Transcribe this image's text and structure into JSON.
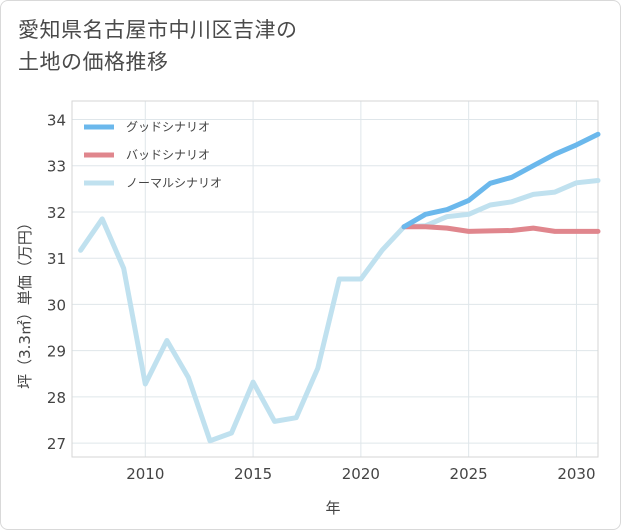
{
  "title_line1": "愛知県名古屋市中川区吉津の",
  "title_line2": "土地の価格推移",
  "chart_data": {
    "type": "line",
    "xlabel": "年",
    "ylabel": "坪（3.3㎡）単価（万円）",
    "xlim": [
      2006.6,
      2031
    ],
    "ylim": [
      26.7,
      34.4
    ],
    "x_ticks": [
      2010,
      2015,
      2020,
      2025,
      2030
    ],
    "y_ticks": [
      27,
      28,
      29,
      30,
      31,
      32,
      33,
      34
    ],
    "grid": true,
    "legend_position": "top-left",
    "series": [
      {
        "name": "グッドシナリオ",
        "color": "#6bb8ec",
        "x": [
          2022,
          2023,
          2024,
          2025,
          2026,
          2027,
          2028,
          2029,
          2030,
          2031
        ],
        "y": [
          31.68,
          31.95,
          32.05,
          32.25,
          32.62,
          32.75,
          33.0,
          33.25,
          33.45,
          33.68
        ]
      },
      {
        "name": "バッドシナリオ",
        "color": "#e0868d",
        "x": [
          2022,
          2023,
          2024,
          2025,
          2026,
          2027,
          2028,
          2029,
          2030,
          2031
        ],
        "y": [
          31.68,
          31.68,
          31.65,
          31.58,
          31.59,
          31.6,
          31.65,
          31.58,
          31.58,
          31.58
        ]
      },
      {
        "name": "ノーマルシナリオ",
        "color": "#c0e1ef",
        "x": [
          2007,
          2008,
          2009,
          2010,
          2011,
          2012,
          2013,
          2014,
          2015,
          2016,
          2017,
          2018,
          2019,
          2020,
          2021,
          2022,
          2023,
          2024,
          2025,
          2026,
          2027,
          2028,
          2029,
          2030,
          2031
        ],
        "y": [
          31.17,
          31.85,
          30.78,
          28.28,
          29.22,
          28.42,
          27.05,
          27.22,
          28.32,
          27.47,
          27.55,
          28.62,
          30.55,
          30.55,
          31.18,
          31.68,
          31.7,
          31.9,
          31.95,
          32.15,
          32.22,
          32.38,
          32.43,
          32.63,
          32.68
        ]
      }
    ]
  }
}
